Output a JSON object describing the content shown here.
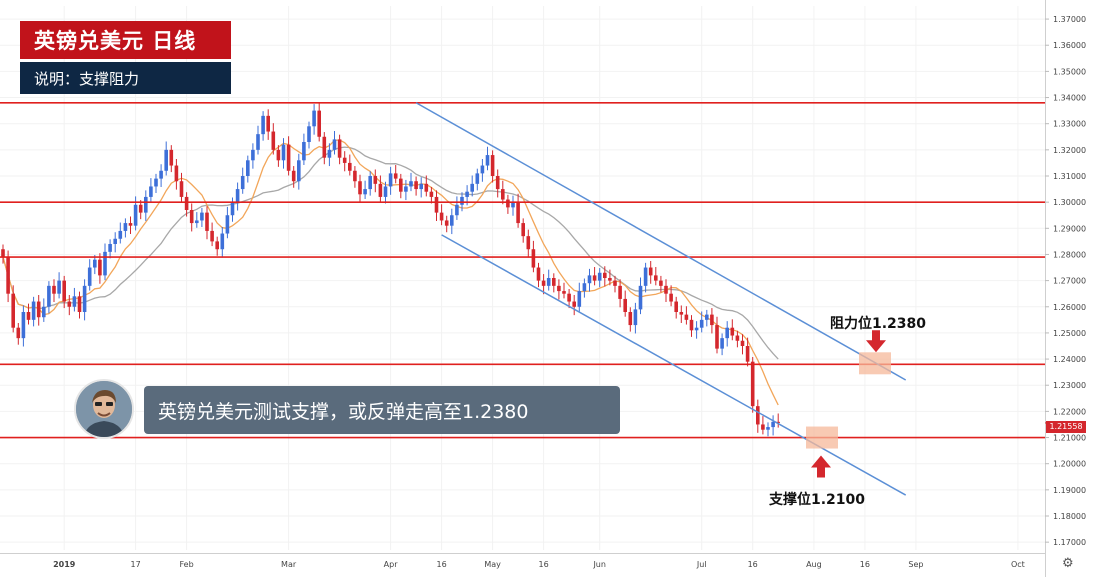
{
  "header": {
    "title": "英镑兑美元  日线",
    "subtitle": "说明：支撑阻力"
  },
  "callout": {
    "text": "英镑兑美元测试支撑，或反弹走高至1.2380"
  },
  "annotations": {
    "resistance_label": "阻力位1.2380",
    "support_label": "支撑位1.2100"
  },
  "last_price": "1.21558",
  "colors": {
    "title_bg": "#c1131b",
    "subtitle_bg": "#0e2744",
    "callout_bg": "#5a6b7c",
    "up_candle": "#3d6fd8",
    "down_candle": "#d4272d",
    "hline": "#e0201f",
    "channel": "#5b8fd6",
    "ma_fast": "#f2a65a",
    "ma_slow": "#a8a8a8",
    "highlight": "#f5b89a"
  },
  "chart_data": {
    "type": "candlestick",
    "y_range": [
      1.167,
      1.375
    ],
    "y_ticks": [
      "1.17000",
      "1.18000",
      "1.19000",
      "1.20000",
      "1.21000",
      "1.22000",
      "1.23000",
      "1.24000",
      "1.25000",
      "1.26000",
      "1.27000",
      "1.28000",
      "1.29000",
      "1.30000",
      "1.31000",
      "1.32000",
      "1.33000",
      "1.34000",
      "1.35000",
      "1.36000",
      "1.37000"
    ],
    "x_ticks": [
      {
        "label": "2019",
        "day": 12
      },
      {
        "label": "17",
        "day": 26
      },
      {
        "label": "Feb",
        "day": 36
      },
      {
        "label": "Mar",
        "day": 56
      },
      {
        "label": "Apr",
        "day": 76
      },
      {
        "label": "16",
        "day": 86
      },
      {
        "label": "May",
        "day": 96
      },
      {
        "label": "16",
        "day": 106
      },
      {
        "label": "Jun",
        "day": 117
      },
      {
        "label": "Jul",
        "day": 137
      },
      {
        "label": "16",
        "day": 147
      },
      {
        "label": "Aug",
        "day": 159
      },
      {
        "label": "16",
        "day": 169
      },
      {
        "label": "Sep",
        "day": 179
      },
      {
        "label": "Oct",
        "day": 199
      }
    ],
    "horizontal_levels": [
      1.338,
      1.3,
      1.279,
      1.238,
      1.21
    ],
    "channel_lines": [
      {
        "from": {
          "day": 81,
          "price": 1.338
        },
        "to": {
          "day": 177,
          "price": 1.232
        }
      },
      {
        "from": {
          "day": 86,
          "price": 1.2875
        },
        "to": {
          "day": 177,
          "price": 1.188
        }
      }
    ],
    "resistance_level": 1.238,
    "support_level": 1.21,
    "last_price": 1.21558,
    "closes": [
      1.279,
      1.265,
      1.252,
      1.248,
      1.258,
      1.255,
      1.262,
      1.256,
      1.26,
      1.268,
      1.265,
      1.27,
      1.262,
      1.26,
      1.264,
      1.258,
      1.268,
      1.275,
      1.278,
      1.272,
      1.281,
      1.284,
      1.286,
      1.289,
      1.292,
      1.291,
      1.299,
      1.296,
      1.302,
      1.306,
      1.309,
      1.312,
      1.32,
      1.314,
      1.308,
      1.302,
      1.297,
      1.292,
      1.293,
      1.296,
      1.289,
      1.285,
      1.282,
      1.288,
      1.295,
      1.3,
      1.305,
      1.31,
      1.316,
      1.32,
      1.326,
      1.333,
      1.327,
      1.32,
      1.316,
      1.322,
      1.312,
      1.308,
      1.316,
      1.323,
      1.329,
      1.335,
      1.325,
      1.317,
      1.32,
      1.324,
      1.317,
      1.315,
      1.312,
      1.308,
      1.303,
      1.305,
      1.31,
      1.307,
      1.302,
      1.306,
      1.311,
      1.309,
      1.304,
      1.306,
      1.308,
      1.305,
      1.307,
      1.304,
      1.302,
      1.296,
      1.293,
      1.291,
      1.295,
      1.299,
      1.302,
      1.304,
      1.307,
      1.311,
      1.314,
      1.318,
      1.31,
      1.305,
      1.301,
      1.298,
      1.3,
      1.292,
      1.287,
      1.282,
      1.275,
      1.27,
      1.268,
      1.271,
      1.268,
      1.266,
      1.265,
      1.262,
      1.26,
      1.266,
      1.269,
      1.272,
      1.27,
      1.273,
      1.271,
      1.27,
      1.268,
      1.263,
      1.258,
      1.253,
      1.259,
      1.268,
      1.275,
      1.272,
      1.27,
      1.268,
      1.265,
      1.262,
      1.258,
      1.257,
      1.255,
      1.251,
      1.252,
      1.255,
      1.257,
      1.253,
      1.244,
      1.248,
      1.252,
      1.249,
      1.247,
      1.245,
      1.239,
      1.222,
      1.215,
      1.213,
      1.214,
      1.216,
      1.2156
    ]
  }
}
